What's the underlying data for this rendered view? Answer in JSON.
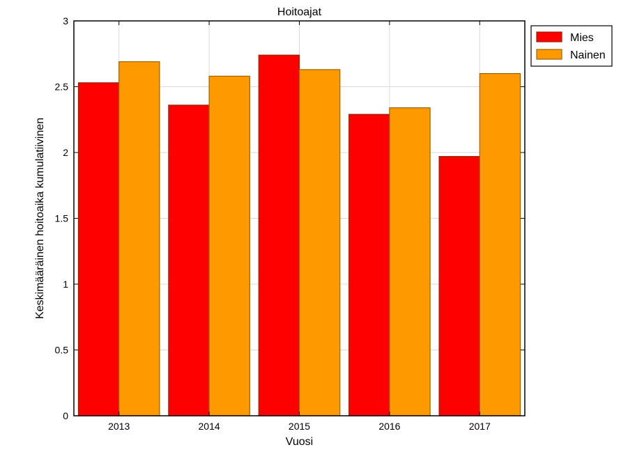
{
  "chart_data": {
    "type": "bar",
    "title": "Hoitoajat",
    "xlabel": "Vuosi",
    "ylabel": "Keskimääräinen hoitoaika kumulatiivinen",
    "categories": [
      "2013",
      "2014",
      "2015",
      "2016",
      "2017"
    ],
    "ylim": [
      0,
      3
    ],
    "yticks": [
      "0",
      "0.5",
      "1",
      "1.5",
      "2",
      "2.5",
      "3"
    ],
    "grid": true,
    "legend_position": "outside-top-right",
    "series": [
      {
        "name": "Mies",
        "color": "#ff0000",
        "edge": "#8a2a00",
        "values": [
          2.53,
          2.36,
          2.74,
          2.29,
          1.97
        ]
      },
      {
        "name": "Nainen",
        "color": "#ff9900",
        "edge": "#9a6400",
        "values": [
          2.69,
          2.58,
          2.63,
          2.34,
          2.6
        ]
      }
    ]
  }
}
